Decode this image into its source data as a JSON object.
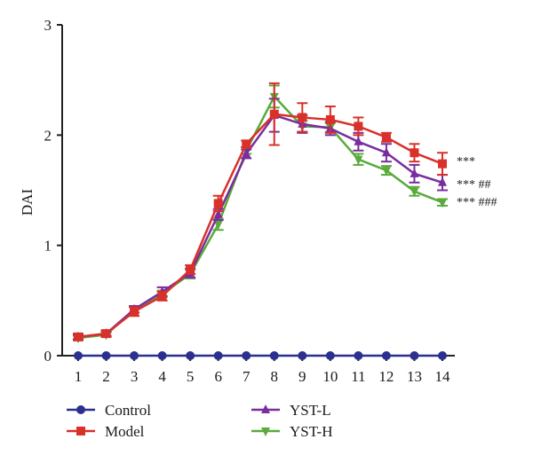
{
  "chart_data": {
    "type": "line",
    "title": "",
    "xlabel": "",
    "ylabel": "DAI",
    "x": [
      1,
      2,
      3,
      4,
      5,
      6,
      7,
      8,
      9,
      10,
      11,
      12,
      13,
      14
    ],
    "xlim": [
      1,
      14
    ],
    "ylim": [
      0,
      3
    ],
    "yticks": [
      0,
      1,
      2,
      3
    ],
    "grid": false,
    "legend": {
      "position": "bottom",
      "columns": 2
    },
    "series": [
      {
        "name": "Control",
        "color": "#2b2f8f",
        "marker": "circle",
        "values": [
          0,
          0,
          0,
          0,
          0,
          0,
          0,
          0,
          0,
          0,
          0,
          0,
          0,
          0
        ]
      },
      {
        "name": "Model",
        "color": "#d9302a",
        "marker": "square",
        "values": [
          0.17,
          0.2,
          0.4,
          0.54,
          0.78,
          1.38,
          1.92,
          2.19,
          2.16,
          2.14,
          2.08,
          1.98,
          1.84,
          1.74
        ],
        "errors": [
          0.03,
          0.03,
          0.04,
          0.04,
          0.04,
          0.07,
          0.03,
          0.28,
          0.13,
          0.12,
          0.08,
          0.04,
          0.08,
          0.1
        ],
        "significance": "***"
      },
      {
        "name": "YST-L",
        "color": "#7b2d9e",
        "marker": "triangle-up",
        "values": [
          0.17,
          0.2,
          0.42,
          0.58,
          0.75,
          1.28,
          1.83,
          2.18,
          2.1,
          2.06,
          1.94,
          1.84,
          1.65,
          1.57
        ],
        "errors": [
          0.02,
          0.02,
          0.03,
          0.04,
          0.04,
          0.05,
          0.04,
          0.15,
          0.08,
          0.06,
          0.08,
          0.08,
          0.08,
          0.07
        ],
        "significance": "*** ##"
      },
      {
        "name": "YST-H",
        "color": "#5aaa3c",
        "marker": "triangle-down",
        "values": [
          0.16,
          0.19,
          0.42,
          0.56,
          0.74,
          1.19,
          1.86,
          2.35,
          2.08,
          2.07,
          1.78,
          1.68,
          1.49,
          1.39
        ],
        "errors": [
          0.02,
          0.02,
          0.03,
          0.03,
          0.04,
          0.05,
          0.03,
          0.1,
          0.05,
          0.04,
          0.05,
          0.04,
          0.04,
          0.03
        ],
        "significance": "*** ###"
      }
    ]
  }
}
